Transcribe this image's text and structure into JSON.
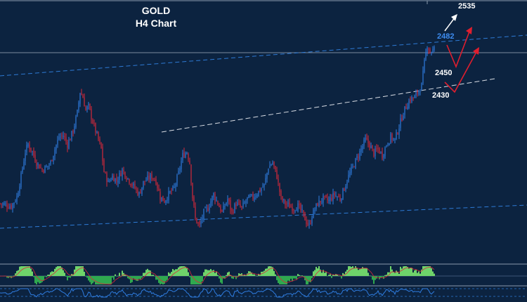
{
  "title_line1": "GOLD",
  "title_line2": "H4 Chart",
  "colors": {
    "background": "#0c2340",
    "bull": "#2f7de1",
    "bear": "#d8283a",
    "channel": "#2e7bd6",
    "support_line": "#d9dde4",
    "arrow_white": "#ffffff",
    "arrow_red": "#e01e2e",
    "hist_green": "#2fa84f",
    "hist_green_light": "#6fd36a",
    "label_blue": "#3d8cf0"
  },
  "levels": [
    {
      "value": "2535",
      "color": "#ffffff"
    },
    {
      "value": "2482",
      "color": "#3d8cf0"
    },
    {
      "value": "2450",
      "color": "#ffffff"
    },
    {
      "value": "2430",
      "color": "#ffffff"
    }
  ],
  "chart_data": {
    "type": "candlestick",
    "instrument": "GOLD",
    "timeframe": "H4",
    "ylim": [
      2280,
      2545
    ],
    "close_path": [
      [
        0,
        2355
      ],
      [
        8,
        2352
      ],
      [
        12,
        2362
      ],
      [
        15,
        2385
      ],
      [
        18,
        2412
      ],
      [
        20,
        2420
      ],
      [
        23,
        2412
      ],
      [
        26,
        2400
      ],
      [
        30,
        2392
      ],
      [
        33,
        2395
      ],
      [
        36,
        2400
      ],
      [
        39,
        2415
      ],
      [
        42,
        2428
      ],
      [
        45,
        2430
      ],
      [
        48,
        2420
      ],
      [
        52,
        2435
      ],
      [
        55,
        2455
      ],
      [
        57,
        2478
      ],
      [
        59,
        2472
      ],
      [
        61,
        2458
      ],
      [
        63,
        2462
      ],
      [
        66,
        2445
      ],
      [
        69,
        2430
      ],
      [
        72,
        2415
      ],
      [
        74,
        2390
      ],
      [
        77,
        2378
      ],
      [
        80,
        2385
      ],
      [
        83,
        2380
      ],
      [
        87,
        2392
      ],
      [
        90,
        2385
      ],
      [
        93,
        2378
      ],
      [
        96,
        2372
      ],
      [
        99,
        2365
      ],
      [
        102,
        2378
      ],
      [
        105,
        2382
      ],
      [
        108,
        2385
      ],
      [
        111,
        2380
      ],
      [
        114,
        2362
      ],
      [
        117,
        2358
      ],
      [
        120,
        2365
      ],
      [
        124,
        2372
      ],
      [
        127,
        2388
      ],
      [
        130,
        2408
      ],
      [
        133,
        2412
      ],
      [
        135,
        2400
      ],
      [
        137,
        2362
      ],
      [
        139,
        2338
      ],
      [
        142,
        2330
      ],
      [
        145,
        2345
      ],
      [
        148,
        2350
      ],
      [
        152,
        2365
      ],
      [
        155,
        2355
      ],
      [
        158,
        2345
      ],
      [
        162,
        2360
      ],
      [
        165,
        2345
      ],
      [
        168,
        2355
      ],
      [
        172,
        2350
      ],
      [
        176,
        2360
      ],
      [
        180,
        2362
      ],
      [
        184,
        2368
      ],
      [
        188,
        2375
      ],
      [
        191,
        2395
      ],
      [
        194,
        2400
      ],
      [
        197,
        2385
      ],
      [
        200,
        2360
      ],
      [
        203,
        2355
      ],
      [
        206,
        2352
      ],
      [
        209,
        2350
      ],
      [
        212,
        2352
      ],
      [
        215,
        2345
      ],
      [
        218,
        2335
      ],
      [
        220,
        2330
      ],
      [
        222,
        2342
      ],
      [
        226,
        2355
      ],
      [
        230,
        2360
      ],
      [
        234,
        2358
      ],
      [
        238,
        2365
      ],
      [
        242,
        2360
      ],
      [
        245,
        2372
      ],
      [
        248,
        2385
      ],
      [
        251,
        2395
      ],
      [
        254,
        2405
      ],
      [
        257,
        2415
      ],
      [
        260,
        2425
      ],
      [
        263,
        2420
      ],
      [
        266,
        2410
      ],
      [
        269,
        2415
      ],
      [
        272,
        2408
      ],
      [
        275,
        2420
      ],
      [
        278,
        2428
      ],
      [
        281,
        2425
      ],
      [
        284,
        2440
      ],
      [
        287,
        2455
      ],
      [
        290,
        2465
      ],
      [
        292,
        2470
      ],
      [
        295,
        2472
      ],
      [
        298,
        2480
      ],
      [
        300,
        2485
      ],
      [
        302,
        2510
      ],
      [
        304,
        2530
      ],
      [
        306,
        2522
      ],
      [
        309,
        2525
      ]
    ]
  }
}
